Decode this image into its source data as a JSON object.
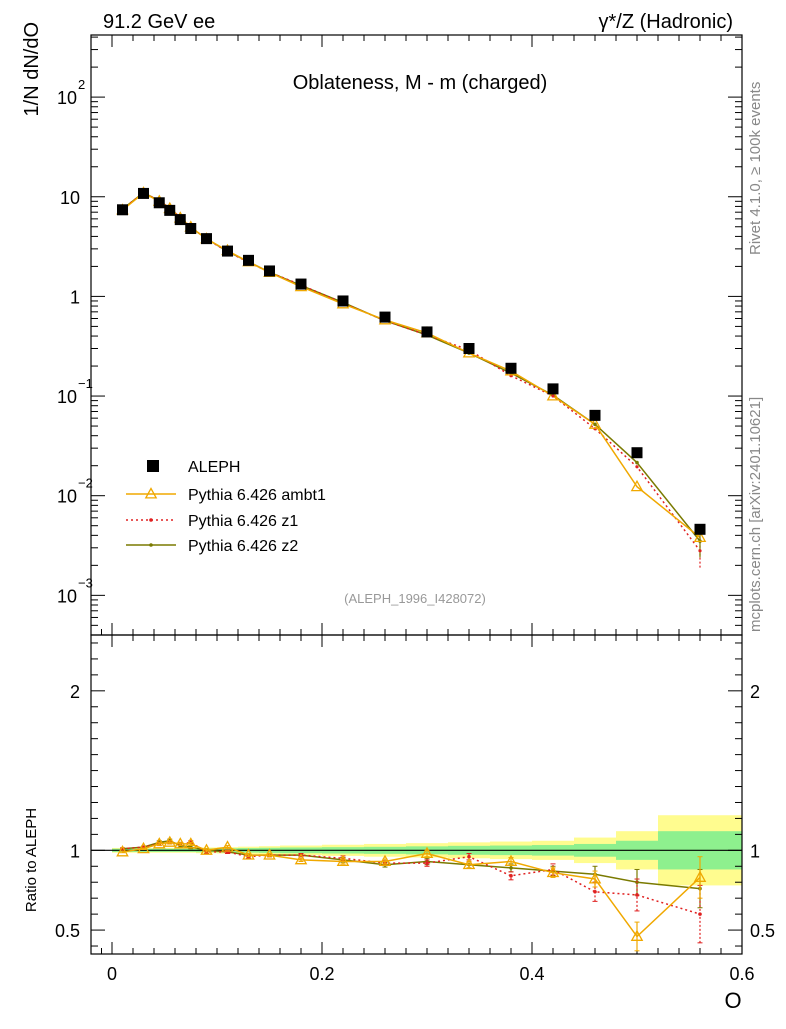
{
  "header": {
    "left": "91.2 GeV ee",
    "right": "γ*/Z (Hadronic)"
  },
  "side_labels": {
    "rivet": "Rivet 4.1.0, ≥ 100k events",
    "mcplots": "mcplots.cern.ch [arXiv:2401.10621]"
  },
  "chart_data": [
    {
      "type": "scatter",
      "title": "Oblateness, M - m (charged)",
      "watermark": "(ALEPH_1996_I428072)",
      "ylabel": "1/N  dN/dO",
      "xlabel": "O",
      "yscale": "log",
      "xlim": [
        -0.02,
        0.6
      ],
      "ylim": [
        0.0004,
        420
      ],
      "ytick_labels": {
        "1e-3": [
          "10",
          "−3"
        ],
        "1e-2": [
          "10",
          "−2"
        ],
        "1e-1": [
          "10",
          "−1"
        ],
        "1": [
          "1",
          ""
        ],
        "10": [
          "10",
          ""
        ],
        "100": [
          "10",
          "2"
        ]
      },
      "legend": [
        "ALEPH",
        "Pythia 6.426 ambt1",
        "Pythia 6.426 z1",
        "Pythia 6.426 z2"
      ],
      "colors": {
        "data": "#000000",
        "ambt1": "#f0a800",
        "z1": "#e02020",
        "z2": "#7a7a00"
      },
      "x": [
        0.01,
        0.03,
        0.045,
        0.055,
        0.065,
        0.075,
        0.09,
        0.11,
        0.13,
        0.15,
        0.18,
        0.22,
        0.26,
        0.3,
        0.34,
        0.38,
        0.42,
        0.46,
        0.5,
        0.56
      ],
      "series": [
        {
          "name": "ALEPH",
          "values": [
            7.4,
            10.8,
            8.7,
            7.3,
            5.9,
            4.8,
            3.8,
            2.85,
            2.3,
            1.8,
            1.33,
            0.9,
            0.62,
            0.44,
            0.3,
            0.19,
            0.118,
            0.064,
            0.027,
            0.0046
          ]
        },
        {
          "name": "Pythia 6.426 ambt1",
          "values": [
            7.35,
            10.9,
            9.0,
            7.6,
            6.1,
            4.95,
            3.78,
            2.88,
            2.22,
            1.74,
            1.25,
            0.84,
            0.58,
            0.43,
            0.27,
            0.178,
            0.1,
            0.052,
            0.0123,
            0.0038
          ]
        },
        {
          "name": "Pythia 6.426 z1",
          "values": [
            7.5,
            11.0,
            9.1,
            7.7,
            6.2,
            5.0,
            3.75,
            2.82,
            2.2,
            1.75,
            1.3,
            0.86,
            0.57,
            0.41,
            0.29,
            0.16,
            0.1,
            0.047,
            0.0195,
            0.0028
          ]
        },
        {
          "name": "Pythia 6.426 z2",
          "values": [
            7.5,
            11.0,
            9.1,
            7.7,
            6.1,
            4.9,
            3.8,
            2.82,
            2.23,
            1.75,
            1.29,
            0.87,
            0.57,
            0.41,
            0.27,
            0.17,
            0.102,
            0.052,
            0.0215,
            0.0035
          ]
        }
      ]
    },
    {
      "type": "line",
      "ylabel": "Ratio to ALEPH",
      "xlabel": "O",
      "xlim": [
        -0.02,
        0.6
      ],
      "ylim": [
        0.35,
        2.35
      ],
      "xticks": [
        0,
        0.2,
        0.4,
        0.6
      ],
      "xtick_labels": [
        "0",
        "0.2",
        "0.4",
        "0.6"
      ],
      "yticks": [
        0.5,
        1,
        2
      ],
      "ytick_labels": [
        "0.5",
        "1",
        "2"
      ],
      "x": [
        0.01,
        0.03,
        0.045,
        0.055,
        0.065,
        0.075,
        0.09,
        0.11,
        0.13,
        0.15,
        0.18,
        0.22,
        0.26,
        0.3,
        0.34,
        0.38,
        0.42,
        0.46,
        0.5,
        0.56
      ],
      "bin_edges": [
        0.0,
        0.02,
        0.04,
        0.05,
        0.06,
        0.07,
        0.08,
        0.1,
        0.12,
        0.14,
        0.16,
        0.2,
        0.24,
        0.28,
        0.32,
        0.36,
        0.4,
        0.44,
        0.48,
        0.52,
        0.6
      ],
      "band_inner": [
        0.01,
        0.01,
        0.01,
        0.01,
        0.01,
        0.01,
        0.012,
        0.013,
        0.014,
        0.016,
        0.018,
        0.02,
        0.022,
        0.025,
        0.028,
        0.03,
        0.033,
        0.04,
        0.06,
        0.12
      ],
      "band_outer": [
        0.015,
        0.015,
        0.015,
        0.015,
        0.015,
        0.015,
        0.018,
        0.02,
        0.023,
        0.026,
        0.03,
        0.035,
        0.04,
        0.045,
        0.05,
        0.055,
        0.06,
        0.08,
        0.12,
        0.22
      ],
      "series": [
        {
          "name": "Pythia 6.426 ambt1",
          "values": [
            0.99,
            1.01,
            1.04,
            1.05,
            1.04,
            1.04,
            1.0,
            1.02,
            0.97,
            0.97,
            0.94,
            0.93,
            0.93,
            0.98,
            0.91,
            0.93,
            0.86,
            0.82,
            0.46,
            0.83
          ],
          "errors": [
            0.005,
            0.005,
            0.01,
            0.01,
            0.01,
            0.01,
            0.01,
            0.01,
            0.01,
            0.01,
            0.01,
            0.015,
            0.015,
            0.02,
            0.02,
            0.025,
            0.03,
            0.05,
            0.09,
            0.13
          ]
        },
        {
          "name": "Pythia 6.426 z1",
          "values": [
            1.01,
            1.02,
            1.04,
            1.05,
            1.04,
            1.05,
            0.99,
            0.99,
            0.96,
            0.97,
            0.97,
            0.95,
            0.92,
            0.92,
            0.96,
            0.84,
            0.88,
            0.74,
            0.72,
            0.6
          ],
          "errors": [
            0.005,
            0.005,
            0.01,
            0.01,
            0.01,
            0.01,
            0.01,
            0.01,
            0.01,
            0.01,
            0.01,
            0.015,
            0.015,
            0.02,
            0.02,
            0.025,
            0.035,
            0.06,
            0.1,
            0.18
          ]
        },
        {
          "name": "Pythia 6.426 z2",
          "values": [
            1.01,
            1.02,
            1.05,
            1.06,
            1.03,
            1.02,
            1.0,
            0.99,
            0.97,
            0.97,
            0.97,
            0.94,
            0.91,
            0.93,
            0.91,
            0.89,
            0.87,
            0.85,
            0.8,
            0.76
          ],
          "errors": [
            0.005,
            0.005,
            0.01,
            0.01,
            0.01,
            0.01,
            0.01,
            0.01,
            0.01,
            0.01,
            0.01,
            0.015,
            0.015,
            0.02,
            0.02,
            0.025,
            0.03,
            0.05,
            0.08,
            0.12
          ]
        }
      ]
    }
  ]
}
